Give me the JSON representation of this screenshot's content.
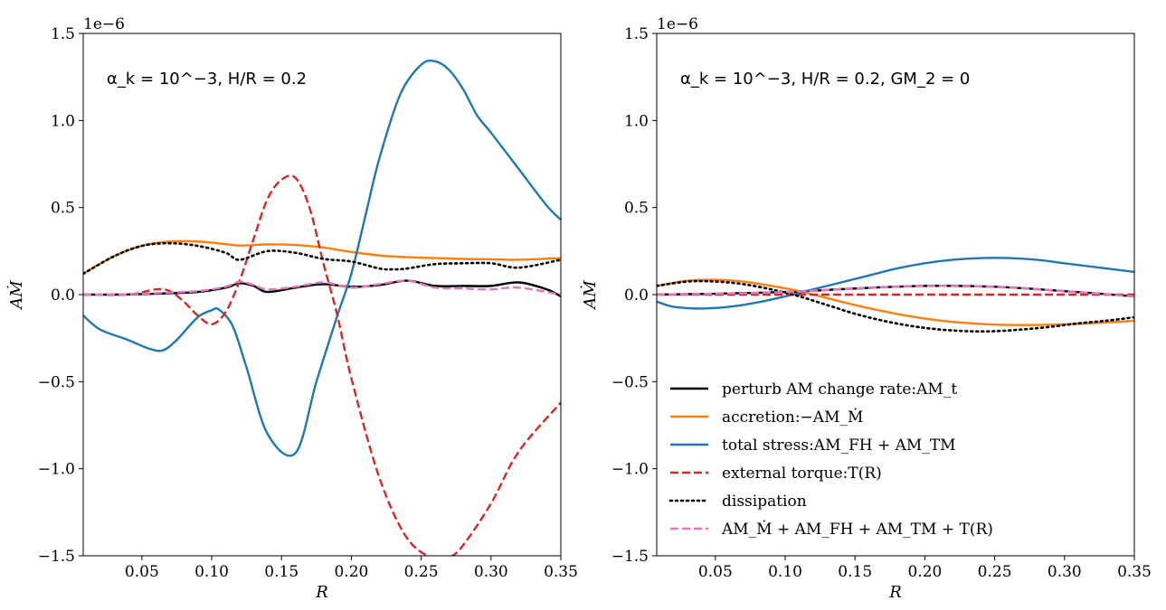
{
  "chart_data": [
    {
      "type": "line",
      "title": "",
      "xlabel": "R",
      "ylabel": "AṀ",
      "y_offset_label": "1e−6",
      "annotation": "α_k = 10^−3,  H/R = 0.2",
      "xlim": [
        0.008,
        0.35
      ],
      "ylim": [
        -1.5,
        1.5
      ],
      "xticks": [
        0.05,
        0.1,
        0.15,
        0.2,
        0.25,
        0.3,
        0.35
      ],
      "xtick_labels": [
        "0.05",
        "0.10",
        "0.15",
        "0.20",
        "0.25",
        "0.30",
        "0.35"
      ],
      "yticks": [
        -1.5,
        -1.0,
        -0.5,
        0.0,
        0.5,
        1.0,
        1.5
      ],
      "ytick_labels": [
        "−1.5",
        "−1.0",
        "−0.5",
        "0.0",
        "0.5",
        "1.0",
        "1.5"
      ],
      "series": [
        {
          "name": "perturb AM change rate:AM_t",
          "color": "#000000",
          "style": "solid",
          "x": [
            0.008,
            0.03,
            0.05,
            0.07,
            0.09,
            0.11,
            0.12,
            0.13,
            0.14,
            0.16,
            0.18,
            0.2,
            0.22,
            0.24,
            0.26,
            0.28,
            0.3,
            0.32,
            0.34,
            0.35
          ],
          "y": [
            0.0,
            0.0,
            0.003,
            0.008,
            0.015,
            0.04,
            0.065,
            0.05,
            0.015,
            0.04,
            0.06,
            0.045,
            0.055,
            0.08,
            0.05,
            0.05,
            0.05,
            0.07,
            0.03,
            -0.01
          ]
        },
        {
          "name": "accretion:−AM_Ṁ",
          "color": "#ff7f0e",
          "style": "solid",
          "x": [
            0.008,
            0.03,
            0.05,
            0.07,
            0.09,
            0.11,
            0.12,
            0.14,
            0.16,
            0.18,
            0.2,
            0.22,
            0.24,
            0.26,
            0.28,
            0.3,
            0.32,
            0.35
          ],
          "y": [
            0.12,
            0.22,
            0.28,
            0.305,
            0.305,
            0.29,
            0.282,
            0.288,
            0.285,
            0.27,
            0.245,
            0.225,
            0.215,
            0.21,
            0.205,
            0.203,
            0.2,
            0.21
          ]
        },
        {
          "name": "total stress:AM_FH + AM_TM",
          "color": "#1f77b4",
          "style": "solid",
          "x": [
            0.008,
            0.02,
            0.04,
            0.055,
            0.065,
            0.075,
            0.09,
            0.1,
            0.105,
            0.115,
            0.125,
            0.14,
            0.16,
            0.175,
            0.19,
            0.2,
            0.21,
            0.22,
            0.235,
            0.25,
            0.26,
            0.27,
            0.28,
            0.29,
            0.3,
            0.32,
            0.34,
            0.35
          ],
          "y": [
            -0.12,
            -0.2,
            -0.26,
            -0.31,
            -0.32,
            -0.26,
            -0.13,
            -0.09,
            -0.085,
            -0.18,
            -0.42,
            -0.8,
            -0.91,
            -0.5,
            -0.12,
            0.12,
            0.45,
            0.78,
            1.15,
            1.32,
            1.34,
            1.29,
            1.18,
            1.03,
            0.93,
            0.72,
            0.51,
            0.43
          ]
        },
        {
          "name": "external torque:T(R)",
          "color": "#d62728",
          "style": "dashed",
          "x": [
            0.008,
            0.04,
            0.06,
            0.07,
            0.08,
            0.09,
            0.1,
            0.11,
            0.12,
            0.13,
            0.14,
            0.15,
            0.16,
            0.17,
            0.18,
            0.19,
            0.2,
            0.22,
            0.24,
            0.26,
            0.27,
            0.28,
            0.3,
            0.32,
            0.35
          ],
          "y": [
            0.0,
            0.0,
            0.03,
            0.02,
            -0.04,
            -0.12,
            -0.17,
            -0.1,
            0.08,
            0.32,
            0.55,
            0.66,
            0.67,
            0.5,
            0.18,
            -0.12,
            -0.48,
            -1.05,
            -1.4,
            -1.52,
            -1.51,
            -1.44,
            -1.2,
            -0.9,
            -0.62
          ]
        },
        {
          "name": "dissipation",
          "color": "#000000",
          "style": "dotted",
          "x": [
            0.008,
            0.03,
            0.05,
            0.07,
            0.09,
            0.11,
            0.12,
            0.14,
            0.16,
            0.18,
            0.2,
            0.22,
            0.23,
            0.24,
            0.26,
            0.28,
            0.3,
            0.32,
            0.35
          ],
          "y": [
            0.12,
            0.22,
            0.28,
            0.295,
            0.28,
            0.24,
            0.2,
            0.25,
            0.24,
            0.205,
            0.19,
            0.15,
            0.145,
            0.15,
            0.175,
            0.18,
            0.18,
            0.155,
            0.2
          ]
        },
        {
          "name": "AM_Ṁ + AM_FH + AM_TM + T(R)",
          "color": "#e377c2",
          "style": "dashed",
          "x": [
            0.008,
            0.03,
            0.05,
            0.07,
            0.09,
            0.11,
            0.12,
            0.13,
            0.14,
            0.16,
            0.18,
            0.2,
            0.22,
            0.24,
            0.26,
            0.28,
            0.3,
            0.32,
            0.35
          ],
          "y": [
            0.0,
            0.0,
            0.005,
            0.012,
            0.02,
            0.045,
            0.075,
            0.055,
            0.03,
            0.045,
            0.07,
            0.04,
            0.06,
            0.08,
            0.04,
            0.035,
            0.03,
            0.04,
            0.0
          ]
        }
      ]
    },
    {
      "type": "line",
      "title": "",
      "xlabel": "R",
      "ylabel": "AṀ",
      "y_offset_label": "1e−6",
      "annotation": "α_k = 10^−3,  H/R = 0.2,  GM_2 = 0",
      "xlim": [
        0.008,
        0.35
      ],
      "ylim": [
        -1.5,
        1.5
      ],
      "xticks": [
        0.05,
        0.1,
        0.15,
        0.2,
        0.25,
        0.3,
        0.35
      ],
      "xtick_labels": [
        "0.05",
        "0.10",
        "0.15",
        "0.20",
        "0.25",
        "0.30",
        "0.35"
      ],
      "yticks": [
        -1.5,
        -1.0,
        -0.5,
        0.0,
        0.5,
        1.0,
        1.5
      ],
      "ytick_labels": [
        "−1.5",
        "−1.0",
        "−0.5",
        "0.0",
        "0.5",
        "1.0",
        "1.5"
      ],
      "legend_position": "lower-left",
      "series": [
        {
          "name": "perturb AM change rate:AM_t",
          "color": "#000000",
          "style": "solid",
          "x": [
            0.008,
            0.05,
            0.1,
            0.15,
            0.2,
            0.25,
            0.3,
            0.35
          ],
          "y": [
            0.0,
            0.005,
            0.015,
            0.035,
            0.05,
            0.045,
            0.02,
            -0.01
          ]
        },
        {
          "name": "accretion:−AM_Ṁ",
          "color": "#ff7f0e",
          "style": "solid",
          "x": [
            0.008,
            0.03,
            0.05,
            0.07,
            0.09,
            0.11,
            0.13,
            0.15,
            0.17,
            0.19,
            0.21,
            0.23,
            0.25,
            0.27,
            0.29,
            0.31,
            0.33,
            0.35
          ],
          "y": [
            0.05,
            0.08,
            0.085,
            0.075,
            0.05,
            0.02,
            -0.02,
            -0.06,
            -0.095,
            -0.125,
            -0.148,
            -0.163,
            -0.172,
            -0.175,
            -0.173,
            -0.168,
            -0.16,
            -0.15
          ]
        },
        {
          "name": "total stress:AM_FH + AM_TM",
          "color": "#1f77b4",
          "style": "solid",
          "x": [
            0.008,
            0.02,
            0.04,
            0.06,
            0.08,
            0.1,
            0.12,
            0.14,
            0.16,
            0.18,
            0.2,
            0.22,
            0.24,
            0.26,
            0.28,
            0.3,
            0.32,
            0.35
          ],
          "y": [
            -0.04,
            -0.07,
            -0.08,
            -0.07,
            -0.045,
            -0.01,
            0.03,
            0.07,
            0.11,
            0.15,
            0.18,
            0.2,
            0.21,
            0.21,
            0.2,
            0.18,
            0.16,
            0.13
          ]
        },
        {
          "name": "external torque:T(R)",
          "color": "#d62728",
          "style": "dashed",
          "x": [
            0.008,
            0.35
          ],
          "y": [
            0.0,
            0.0
          ]
        },
        {
          "name": "dissipation",
          "color": "#000000",
          "style": "dotted",
          "x": [
            0.008,
            0.03,
            0.05,
            0.07,
            0.09,
            0.11,
            0.13,
            0.15,
            0.17,
            0.19,
            0.21,
            0.23,
            0.25,
            0.27,
            0.29,
            0.31,
            0.33,
            0.35
          ],
          "y": [
            0.05,
            0.075,
            0.075,
            0.06,
            0.03,
            -0.01,
            -0.06,
            -0.11,
            -0.15,
            -0.18,
            -0.2,
            -0.21,
            -0.21,
            -0.2,
            -0.185,
            -0.165,
            -0.15,
            -0.13
          ]
        },
        {
          "name": "AM_Ṁ + AM_FH + AM_TM + T(R)",
          "color": "#e377c2",
          "style": "dashed",
          "x": [
            0.008,
            0.05,
            0.1,
            0.15,
            0.2,
            0.25,
            0.3,
            0.35
          ],
          "y": [
            0.0,
            0.005,
            0.015,
            0.035,
            0.05,
            0.045,
            0.02,
            -0.01
          ]
        }
      ]
    }
  ]
}
